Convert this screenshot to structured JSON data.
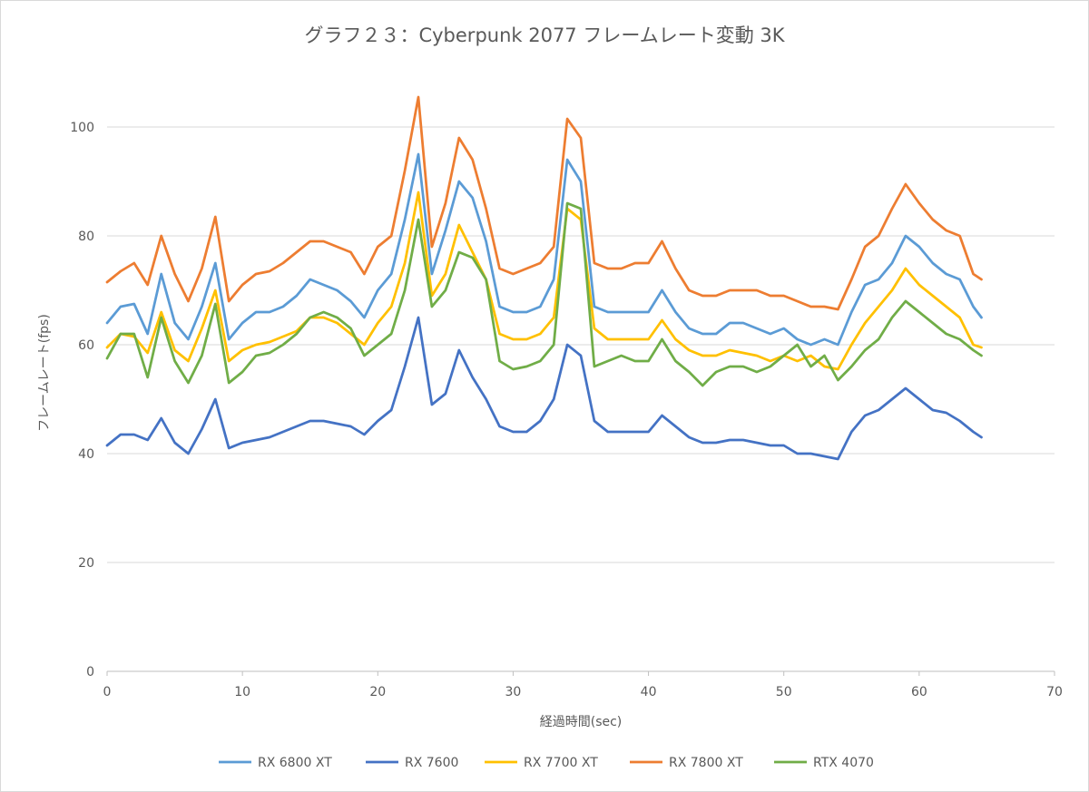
{
  "chart_data": {
    "type": "line",
    "title": "グラフ２３：Cyberpunk 2077 フレームレート変動 3K",
    "xlabel": "経過時間(sec)",
    "ylabel": "フレームレート(fps)",
    "xlim": [
      0,
      70
    ],
    "ylim": [
      0,
      110
    ],
    "x_ticks": [
      0,
      10,
      20,
      30,
      40,
      50,
      60,
      70
    ],
    "y_ticks": [
      0,
      20,
      40,
      60,
      80,
      100
    ],
    "grid": "horizontal",
    "legend_position": "bottom",
    "x": [
      0,
      1,
      2,
      3,
      4,
      5,
      6,
      7,
      8,
      9,
      10,
      11,
      12,
      13,
      14,
      15,
      16,
      17,
      18,
      19,
      20,
      21,
      22,
      23,
      24,
      25,
      26,
      27,
      28,
      29,
      30,
      31,
      32,
      33,
      34,
      35,
      36,
      37,
      38,
      39,
      40,
      41,
      42,
      43,
      44,
      45,
      46,
      47,
      48,
      49,
      50,
      51,
      52,
      53,
      54,
      55,
      56,
      57,
      58,
      59,
      60,
      61,
      62,
      63,
      64,
      64.6
    ],
    "series": [
      {
        "name": "RX 6800 XT",
        "color": "#5B9BD5",
        "values": [
          64,
          67,
          67.5,
          62,
          73,
          64,
          61,
          67,
          75,
          61,
          64,
          66,
          66,
          67,
          69,
          72,
          71,
          70,
          68,
          65,
          70,
          73,
          83,
          95,
          73,
          81,
          90,
          87,
          79,
          67,
          66,
          66,
          67,
          72,
          94,
          90,
          67,
          66,
          66,
          66,
          66,
          70,
          66,
          63,
          62,
          62,
          64,
          64,
          63,
          62,
          63,
          61,
          60,
          61,
          60,
          66,
          71,
          72,
          75,
          80,
          78,
          75,
          73,
          72,
          67,
          65
        ]
      },
      {
        "name": "RX 7600",
        "color": "#4472C4",
        "values": [
          41.5,
          43.5,
          43.5,
          42.5,
          46.5,
          42,
          40,
          44.5,
          50,
          41,
          42,
          42.5,
          43,
          44,
          45,
          46,
          46,
          45.5,
          45,
          43.5,
          46,
          48,
          56,
          65,
          49,
          51,
          59,
          54,
          50,
          45,
          44,
          44,
          46,
          50,
          60,
          58,
          46,
          44,
          44,
          44,
          44,
          47,
          45,
          43,
          42,
          42,
          42.5,
          42.5,
          42,
          41.5,
          41.5,
          40,
          40,
          39.5,
          39,
          44,
          47,
          48,
          50,
          52,
          50,
          48,
          47.5,
          46,
          44,
          43
        ]
      },
      {
        "name": "RX 7700 XT",
        "color": "#FFC000",
        "values": [
          59.5,
          62,
          61.5,
          58.5,
          66,
          59,
          57,
          63,
          70,
          57,
          59,
          60,
          60.5,
          61.5,
          62.5,
          65,
          65,
          64,
          62,
          60,
          64,
          67,
          75,
          88,
          69,
          73,
          82,
          77,
          72,
          62,
          61,
          61,
          62,
          65,
          85,
          83,
          63,
          61,
          61,
          61,
          61,
          64.5,
          61,
          59,
          58,
          58,
          59,
          58.5,
          58,
          57,
          58,
          57,
          58,
          56,
          55.5,
          60,
          64,
          67,
          70,
          74,
          71,
          69,
          67,
          65,
          60,
          59.5
        ]
      },
      {
        "name": "RX 7800 XT",
        "color": "#ED7D31",
        "values": [
          71.5,
          73.5,
          75,
          71,
          80,
          73,
          68,
          74,
          83.5,
          68,
          71,
          73,
          73.5,
          75,
          77,
          79,
          79,
          78,
          77,
          73,
          78,
          80,
          92,
          105.5,
          78,
          86,
          98,
          94,
          85,
          74,
          73,
          74,
          75,
          78,
          101.5,
          98,
          75,
          74,
          74,
          75,
          75,
          79,
          74,
          70,
          69,
          69,
          70,
          70,
          70,
          69,
          69,
          68,
          67,
          67,
          66.5,
          72,
          78,
          80,
          85,
          89.5,
          86,
          83,
          81,
          80,
          73,
          72
        ]
      },
      {
        "name": "RTX 4070",
        "color": "#70AD47",
        "values": [
          57.5,
          62,
          62,
          54,
          65,
          57,
          53,
          58,
          67.5,
          53,
          55,
          58,
          58.5,
          60,
          62,
          65,
          66,
          65,
          63,
          58,
          60,
          62,
          70,
          83,
          67,
          70,
          77,
          76,
          72,
          57,
          55.5,
          56,
          57,
          60,
          86,
          85,
          56,
          57,
          58,
          57,
          57,
          61,
          57,
          55,
          52.5,
          55,
          56,
          56,
          55,
          56,
          58,
          60,
          56,
          58,
          53.5,
          56,
          59,
          61,
          65,
          68,
          66,
          64,
          62,
          61,
          59,
          58
        ]
      }
    ]
  }
}
